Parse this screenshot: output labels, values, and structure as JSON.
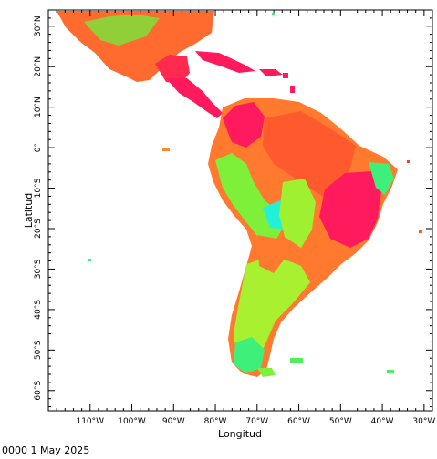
{
  "map": {
    "xlabel": "Longitud",
    "ylabel": "Latitud",
    "lon_range": [
      -120,
      -28
    ],
    "lat_range": [
      -65,
      34
    ],
    "lon_ticks": [
      {
        "value": -110,
        "label": "110°W"
      },
      {
        "value": -100,
        "label": "100°W"
      },
      {
        "value": -90,
        "label": "90°W"
      },
      {
        "value": -80,
        "label": "80°W"
      },
      {
        "value": -70,
        "label": "70°W"
      },
      {
        "value": -60,
        "label": "60°W"
      },
      {
        "value": -50,
        "label": "50°W"
      },
      {
        "value": -40,
        "label": "40°W"
      },
      {
        "value": -30,
        "label": "30°W"
      }
    ],
    "lat_ticks": [
      {
        "value": 30,
        "label": "30°N"
      },
      {
        "value": 20,
        "label": "20°N"
      },
      {
        "value": 10,
        "label": "10°N"
      },
      {
        "value": 0,
        "label": "0°"
      },
      {
        "value": -10,
        "label": "10°S"
      },
      {
        "value": -20,
        "label": "20°S"
      },
      {
        "value": -30,
        "label": "30°S"
      },
      {
        "value": -40,
        "label": "40°S"
      },
      {
        "value": -50,
        "label": "50°S"
      },
      {
        "value": -60,
        "label": "60°S"
      }
    ],
    "colors": {
      "hot": "#ff1a5e",
      "warm": "#ff4d2e",
      "mid": "#ff9a30",
      "cool": "#9ef030",
      "cold": "#22ff7a",
      "coldest": "#22f0d8"
    }
  },
  "timestamp": "0000 1 May 2025"
}
